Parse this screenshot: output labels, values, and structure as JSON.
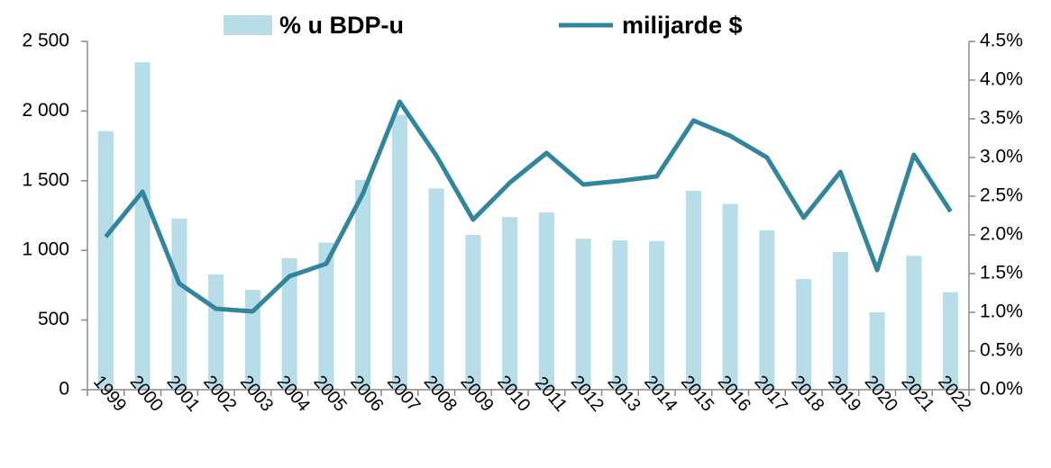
{
  "chart_data": {
    "type": "bar-line",
    "categories": [
      "1999",
      "2000",
      "2001",
      "2002",
      "2003",
      "2004",
      "2005",
      "2006",
      "2007",
      "2008",
      "2009",
      "2010",
      "2011",
      "2012",
      "2013",
      "2014",
      "2015",
      "2016",
      "2017",
      "2018",
      "2019",
      "2020",
      "2021",
      "2022"
    ],
    "series": [
      {
        "name": "% u BDP-u",
        "type": "bar",
        "axis": "y2",
        "color": "#b7dde8",
        "values": [
          3.34,
          4.23,
          2.21,
          1.49,
          1.29,
          1.7,
          1.9,
          2.71,
          3.55,
          2.6,
          2.0,
          2.23,
          2.29,
          1.95,
          1.93,
          1.92,
          2.57,
          2.4,
          2.06,
          1.43,
          1.78,
          1.0,
          1.73,
          1.26
        ]
      },
      {
        "name": "milijarde $",
        "type": "line",
        "axis": "y",
        "color": "#31859c",
        "values": [
          1098,
          1421,
          762,
          581,
          562,
          814,
          904,
          1408,
          2067,
          1680,
          1221,
          1486,
          1699,
          1473,
          1499,
          1531,
          1932,
          1822,
          1667,
          1234,
          1563,
          859,
          1686,
          1279
        ]
      }
    ],
    "ylim": [
      0,
      2500
    ],
    "yticks": [
      0,
      500,
      {
        "value": 1000,
        "label": "1 000"
      },
      {
        "value": 1500,
        "label": "1 500"
      },
      {
        "value": 2000,
        "label": "2 000"
      },
      {
        "value": 2500,
        "label": "2 500"
      }
    ],
    "y2lim": [
      0,
      4.5
    ],
    "y2ticks": [
      {
        "value": 0,
        "label": "0.0%"
      },
      {
        "value": 0.5,
        "label": "0.5%"
      },
      {
        "value": 1,
        "label": "1.0%"
      },
      {
        "value": 1.5,
        "label": "1.5%"
      },
      {
        "value": 2,
        "label": "2.0%"
      },
      {
        "value": 2.5,
        "label": "2.5%"
      },
      {
        "value": 3,
        "label": "3.0%"
      },
      {
        "value": 3.5,
        "label": "3.5%"
      },
      {
        "value": 4,
        "label": "4.0%"
      },
      {
        "value": 4.5,
        "label": "4.5%"
      }
    ],
    "legend": "top"
  }
}
